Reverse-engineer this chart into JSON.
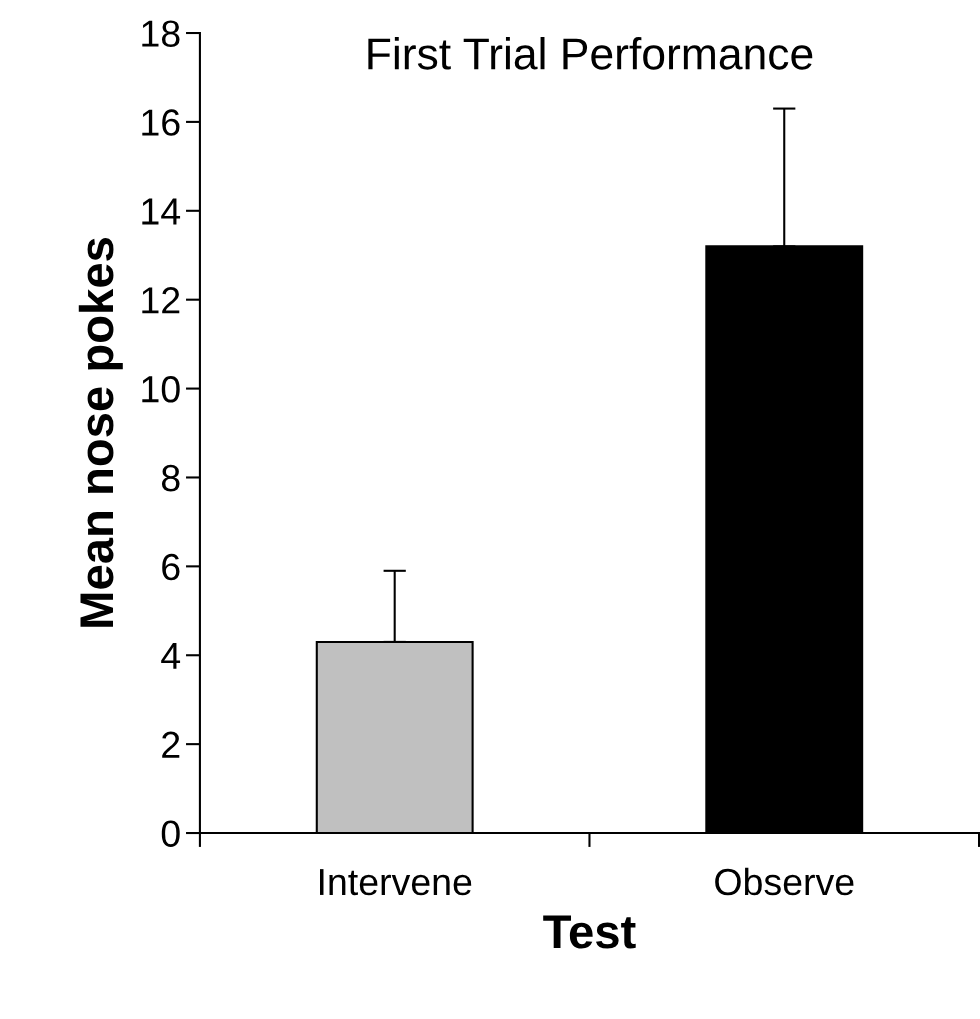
{
  "chart_data": {
    "type": "bar",
    "title": "First Trial Performance",
    "xlabel": "Test",
    "ylabel": "Mean nose pokes",
    "categories": [
      "Intervene",
      "Observe"
    ],
    "values": [
      4.3,
      13.2
    ],
    "colors": [
      "#c0c0c0",
      "#000000"
    ],
    "errors": [
      [
        4.3,
        5.9
      ],
      [
        13.2,
        16.3
      ]
    ],
    "ylim": [
      0,
      18
    ],
    "yticks": [
      0,
      2,
      4,
      6,
      8,
      10,
      12,
      14,
      16,
      18
    ],
    "grid": false,
    "legend": false
  }
}
